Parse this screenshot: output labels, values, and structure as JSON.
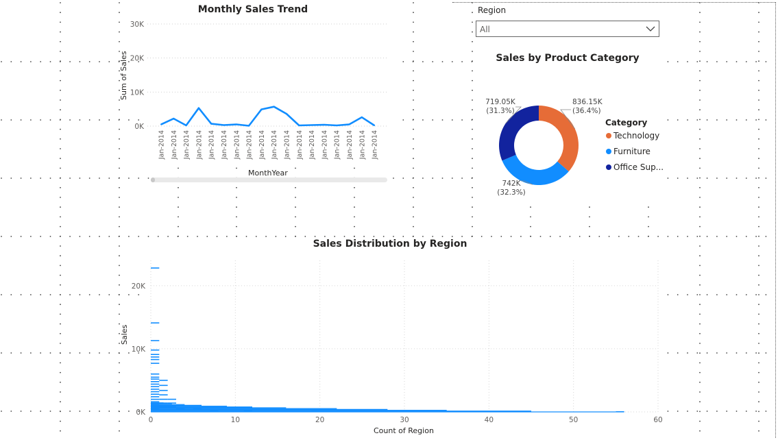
{
  "slicer": {
    "title": "Region",
    "value": "All"
  },
  "charts": {
    "trend": {
      "title": "Monthly Sales Trend",
      "xlabel": "MonthYear",
      "ylabel": "Sum of Sales",
      "color": "#118DFF"
    },
    "donut": {
      "title": "Sales by Product Category",
      "legend_title": "Category",
      "legend_items": [
        "Technology",
        "Furniture",
        "Office Sup..."
      ],
      "labels": [
        [
          "836.15K",
          "(36.4%)"
        ],
        [
          "742K",
          "(32.3%)"
        ],
        [
          "719.05K",
          "(31.3%)"
        ]
      ]
    },
    "dist": {
      "title": "Sales Distribution by Region",
      "xlabel": "Count of Region",
      "ylabel": "Sales",
      "color": "#118DFF"
    }
  },
  "chart_data": [
    {
      "type": "line",
      "title": "Monthly Sales Trend",
      "xlabel": "MonthYear",
      "ylabel": "Sum of Sales",
      "categories": [
        "Jan-2014",
        "Jan-2014",
        "Jan-2014",
        "Jan-2014",
        "Jan-2014",
        "Jan-2014",
        "Jan-2014",
        "Jan-2014",
        "Jan-2014",
        "Jan-2014",
        "Jan-2014",
        "Jan-2014",
        "Jan-2014",
        "Jan-2014",
        "Jan-2014",
        "Jan-2014",
        "Jan-2014",
        "Jan-2014"
      ],
      "values": [
        500,
        2200,
        200,
        5300,
        700,
        300,
        500,
        100,
        4900,
        5700,
        3600,
        200,
        300,
        400,
        200,
        500,
        2600,
        200
      ],
      "yticks": [
        "0K",
        "10K",
        "20K",
        "30K"
      ],
      "ylim": [
        0,
        30000
      ],
      "grid": true
    },
    {
      "type": "pie",
      "title": "Sales by Product Category",
      "donut": true,
      "legend_title": "Category",
      "legend_position": "right",
      "slices": [
        {
          "label": "Technology",
          "value": 836.15,
          "percent": 36.4,
          "color": "#E66C37"
        },
        {
          "label": "Furniture",
          "value": 742,
          "percent": 32.3,
          "color": "#118DFF"
        },
        {
          "label": "Office Sup...",
          "value": 719.05,
          "percent": 31.3,
          "color": "#12239E"
        }
      ],
      "value_labels": [
        "836.15K",
        "742K",
        "719.05K"
      ]
    },
    {
      "type": "scatter",
      "title": "Sales Distribution by Region",
      "xlabel": "Count of Region",
      "ylabel": "Sales",
      "xlim": [
        0,
        60
      ],
      "ylim": [
        0,
        24000
      ],
      "xticks": [
        "0",
        "10",
        "20",
        "30",
        "40",
        "50",
        "60"
      ],
      "yticks": [
        "0K",
        "10K",
        "20K"
      ],
      "grid": true,
      "marker": "horizontal-dash",
      "points": [
        {
          "x": 1,
          "y": 22800
        },
        {
          "x": 1,
          "y": 14100
        },
        {
          "x": 1,
          "y": 11300
        },
        {
          "x": 1,
          "y": 9800
        },
        {
          "x": 1,
          "y": 9100
        },
        {
          "x": 1,
          "y": 8700
        },
        {
          "x": 1,
          "y": 8300
        },
        {
          "x": 1,
          "y": 7700
        },
        {
          "x": 1,
          "y": 6000
        },
        {
          "x": 1,
          "y": 5500
        },
        {
          "x": 1,
          "y": 5200
        },
        {
          "x": 1,
          "y": 4800
        },
        {
          "x": 1,
          "y": 4400
        },
        {
          "x": 1,
          "y": 4000
        },
        {
          "x": 1,
          "y": 3600
        },
        {
          "x": 1,
          "y": 3200
        },
        {
          "x": 1,
          "y": 2800
        },
        {
          "x": 1,
          "y": 2400
        },
        {
          "x": 1,
          "y": 2000
        },
        {
          "x": 1,
          "y": 1600
        },
        {
          "x": 1,
          "y": 1200
        },
        {
          "x": 1,
          "y": 800
        },
        {
          "x": 1,
          "y": 400
        },
        {
          "x": 2,
          "y": 5000
        },
        {
          "x": 2,
          "y": 4200
        },
        {
          "x": 2,
          "y": 3400
        },
        {
          "x": 2,
          "y": 2700
        },
        {
          "x": 2,
          "y": 2000
        },
        {
          "x": 2,
          "y": 1400
        },
        {
          "x": 2,
          "y": 800
        },
        {
          "x": 2,
          "y": 300
        },
        {
          "x": 3,
          "y": 2000
        },
        {
          "x": 3,
          "y": 1400
        },
        {
          "x": 3,
          "y": 800
        },
        {
          "x": 3,
          "y": 300
        },
        {
          "x": 4,
          "y": 1000
        },
        {
          "x": 4,
          "y": 500
        },
        {
          "x": 6,
          "y": 400
        },
        {
          "x": 8,
          "y": 250
        },
        {
          "x": 12,
          "y": 150
        },
        {
          "x": 20,
          "y": 100
        },
        {
          "x": 28,
          "y": 60
        },
        {
          "x": 40,
          "y": 40
        },
        {
          "x": 56,
          "y": 20
        }
      ]
    }
  ]
}
